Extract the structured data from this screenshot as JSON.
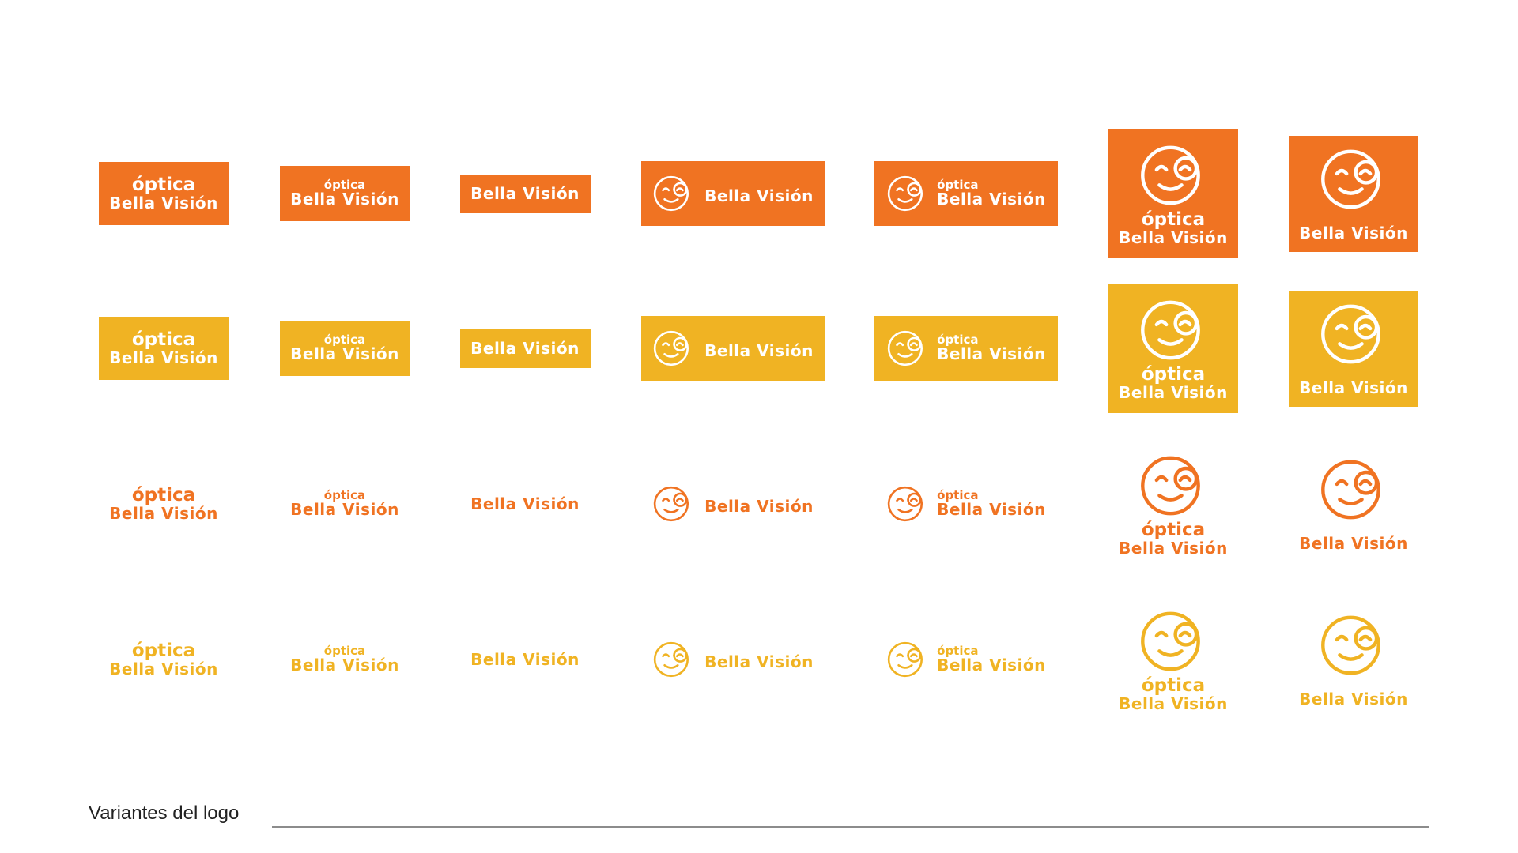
{
  "brand": {
    "line1": "óptica",
    "line2": "Bella Visión"
  },
  "colors": {
    "orange": "#F07322",
    "yellow": "#F0B323",
    "white": "#FFFFFF"
  },
  "rows": [
    {
      "style": "filled",
      "color": "orange"
    },
    {
      "style": "filled",
      "color": "yellow"
    },
    {
      "style": "outline",
      "color": "orange"
    },
    {
      "style": "outline",
      "color": "yellow"
    }
  ],
  "columns": [
    {
      "layout": "stacked-large"
    },
    {
      "layout": "stacked-small"
    },
    {
      "layout": "name-only"
    },
    {
      "layout": "icon-name"
    },
    {
      "layout": "icon-stacked"
    },
    {
      "layout": "icon-top-stacked"
    },
    {
      "layout": "icon-top-name"
    }
  ],
  "icon": "smiling-face-with-glasses-icon",
  "caption": "Variantes del logo"
}
